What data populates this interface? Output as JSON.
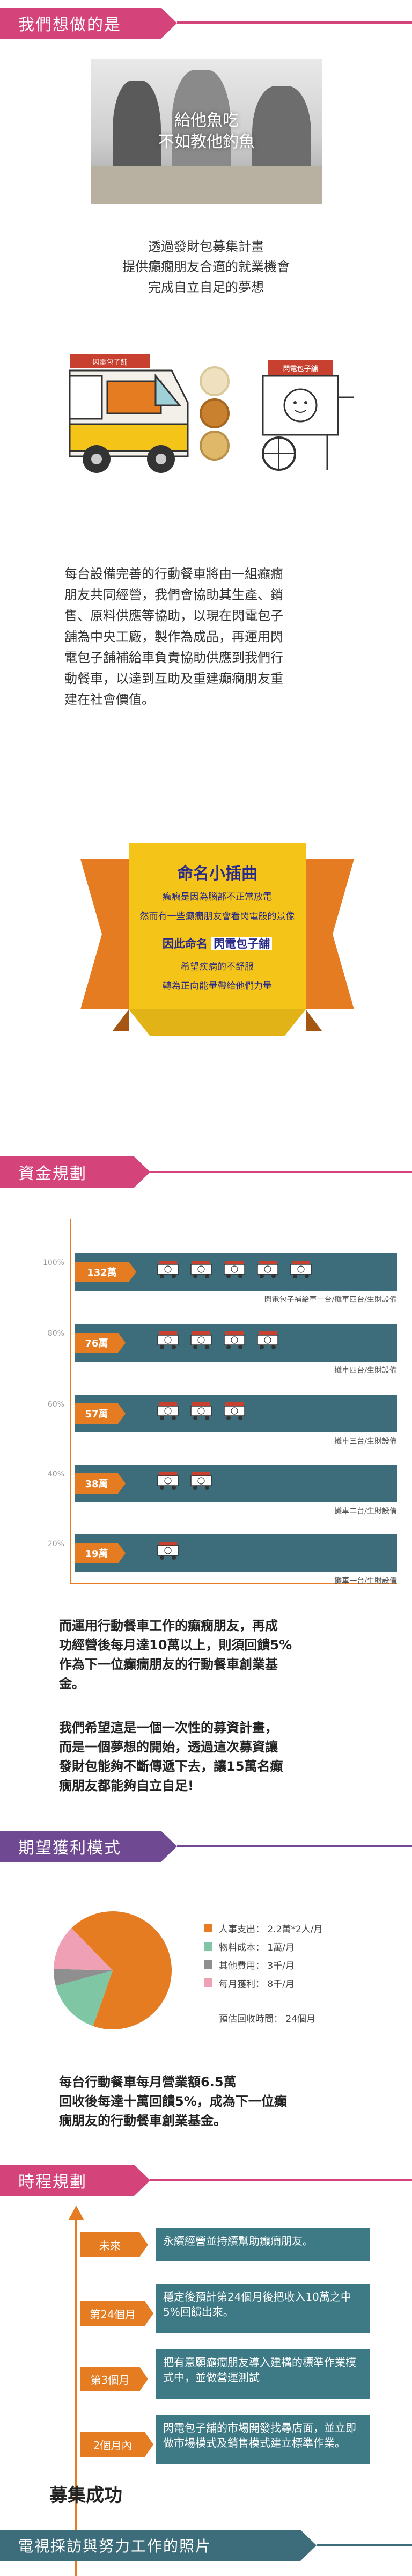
{
  "section1": {
    "title": "我們想做的是",
    "photo_overlay_line1": "給他魚吃",
    "photo_overlay_line2": "不如教他釣魚",
    "intro_line1": "透過發財包募集計畫",
    "intro_line2": "提供癲癇朋友合適的就業機會",
    "intro_line3": "完成自立自足的夢想",
    "truck_sign": "閃電包子舖",
    "paragraph": [
      "每台設備完善的行動餐車將由一組癲癇",
      "朋友共同經營，我們會協助其生產、銷",
      "售、原料供應等協助，以現在閃電包子",
      "舖為中央工廠，製作為成品，再運用閃",
      "電包子舖補給車負責協助供應到我們行",
      "動餐車，以達到互助及重建癲癇朋友重",
      "建在社會價值。"
    ]
  },
  "note": {
    "title": "命名小插曲",
    "line1": "癲癇是因為腦部不正常放電",
    "line2": "然而有一些癲癇朋友會看閃電般的景像",
    "highlight_prefix": "因此命名",
    "highlight_name": "閃電包子舖",
    "line3": "希望疾病的不舒服",
    "line4": "轉為正向能量帶給他們力量"
  },
  "section2": {
    "title": "資金規劃",
    "rows": [
      {
        "pct": "100%",
        "amount": "132萬",
        "caption": "閃電包子補給車一台/攤車四台/生財設備",
        "trucks": 5
      },
      {
        "pct": "80%",
        "amount": "76萬",
        "caption": "攤車四台/生財設備",
        "trucks": 4
      },
      {
        "pct": "60%",
        "amount": "57萬",
        "caption": "攤車三台/生財設備",
        "trucks": 3
      },
      {
        "pct": "40%",
        "amount": "38萬",
        "caption": "攤車二台/生財設備",
        "trucks": 2
      },
      {
        "pct": "20%",
        "amount": "19萬",
        "caption": "攤車一台/生財設備",
        "trucks": 1
      }
    ],
    "paragraph1": [
      "而運用行動餐車工作的癲癇朋友，再成",
      "功經營後每月達10萬以上，則須回饋5%",
      "作為下一位癲癇朋友的行動餐車創業基",
      "金。"
    ],
    "paragraph2": [
      "我們希望這是一個一次性的募資計畫，",
      "而是一個夢想的開始，透過這次募資讓",
      "發財包能夠不斷傳遞下去，讓15萬名癲",
      "癇朋友都能夠自立自足!"
    ]
  },
  "section3": {
    "title": "期望獲利模式",
    "legend": [
      {
        "label": "人事支出：  2.2萬*2人/月",
        "color": "#e57c22",
        "value": 44
      },
      {
        "label": "物料成本：  1萬/月",
        "color": "#7fc6a4",
        "value": 10
      },
      {
        "label": "其他費用：  3千/月",
        "color": "#8f8f8f",
        "value": 3
      },
      {
        "label": "每月獲利：  8千/月",
        "color": "#f0a0b4",
        "value": 8
      }
    ],
    "period": "預估回收時間：  24個月",
    "summary": [
      "每台行動餐車每月營業額6.5萬",
      "回收後每達十萬回饋5%，成為下一位癲",
      "癇朋友的行動餐車創業基金。"
    ]
  },
  "section4": {
    "title": "時程規劃",
    "items": [
      {
        "tag": "未來",
        "text": "永續經營並持續幫助癲癇朋友。"
      },
      {
        "tag": "第24個月",
        "text": "穩定後預計第24個月後把收入10萬之中5%回饋出來。"
      },
      {
        "tag": "第3個月",
        "text": "把有意願癲癇朋友導入建構的標準作業模式中，並做營運測試"
      },
      {
        "tag": "2個月內",
        "text": "閃電包子舖的市場開發找尋店面，並立即做市場模式及銷售模式建立標準作業。"
      }
    ],
    "end_label": "募集成功"
  },
  "section5": {
    "title": "電視採訪與努力工作的照片"
  },
  "colors": {
    "pink": "#d4437a",
    "purple": "#6f4a92",
    "teal": "#3d6d7a",
    "orange": "#e57c22",
    "yellow": "#f4c518"
  }
}
